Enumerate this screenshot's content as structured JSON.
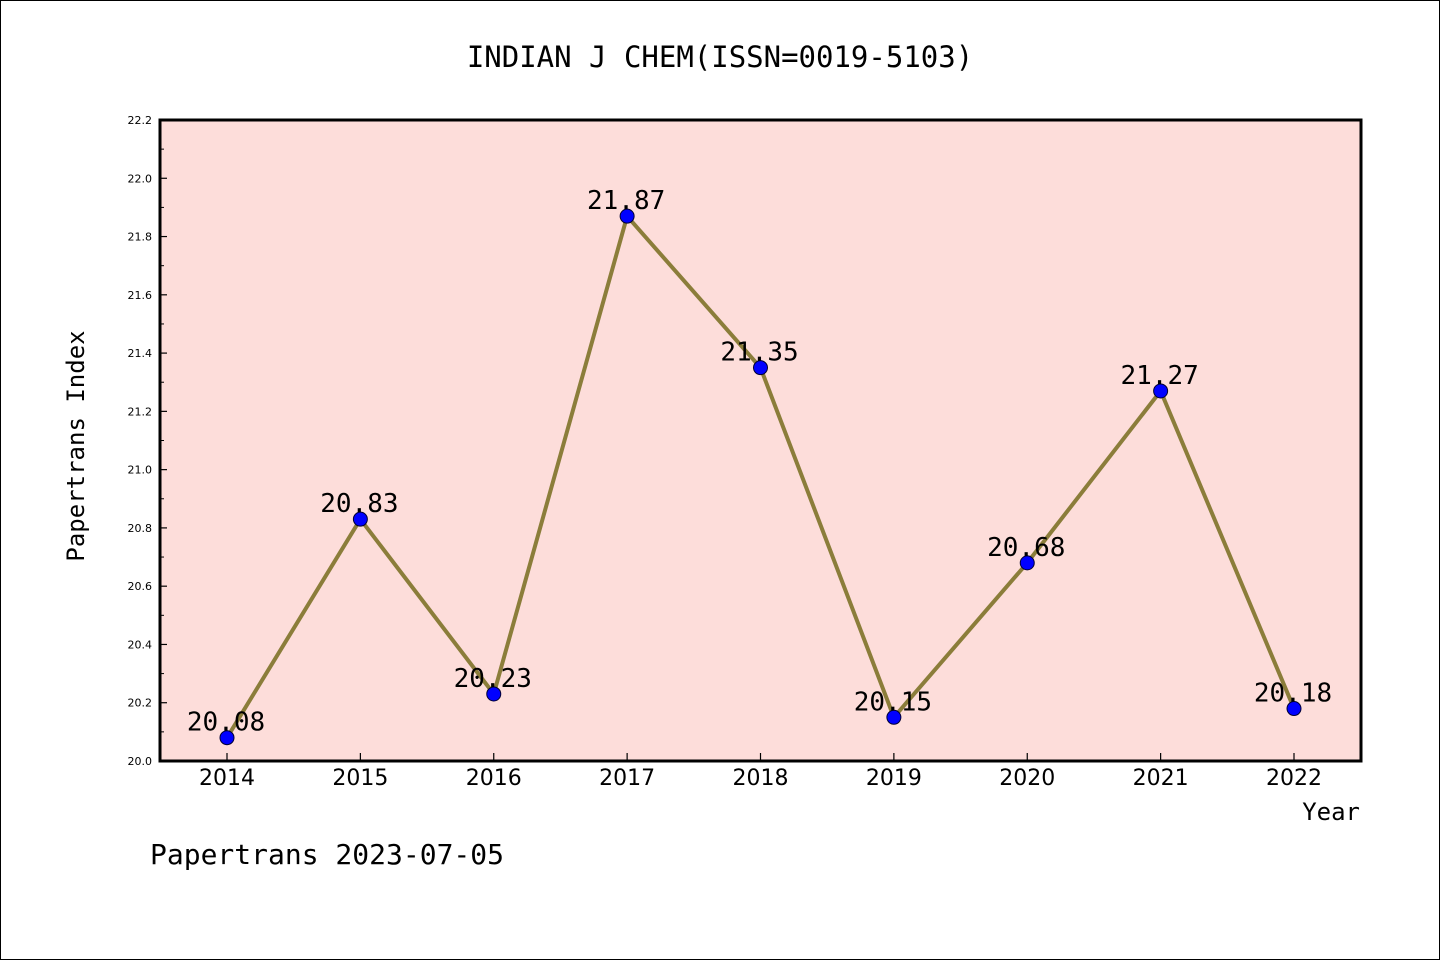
{
  "chart_data": {
    "type": "line",
    "title": "INDIAN J CHEM(ISSN=0019-5103)",
    "xlabel": "Year",
    "ylabel": "Papertrans Index",
    "categories": [
      "2014",
      "2015",
      "2016",
      "2017",
      "2018",
      "2019",
      "2020",
      "2021",
      "2022"
    ],
    "series": [
      {
        "values": [
          20.08,
          20.83,
          20.23,
          21.87,
          21.35,
          20.15,
          20.68,
          21.27,
          20.18
        ],
        "labels": [
          "20.08",
          "20.83",
          "20.23",
          "21.87",
          "21.35",
          "20.15",
          "20.68",
          "21.27",
          "20.18"
        ]
      }
    ],
    "ylim": [
      20.0,
      22.2
    ],
    "yticks": [
      "20.0",
      "20.2",
      "20.4",
      "20.6",
      "20.8",
      "21.0",
      "21.2",
      "21.4",
      "21.6",
      "21.8",
      "22.0",
      "22.2"
    ],
    "grid": false,
    "colors": {
      "plot_background": "#fdddda",
      "line": "#8b7d3a",
      "marker": "#0000ff"
    }
  },
  "footer": "Papertrans 2023-07-05"
}
